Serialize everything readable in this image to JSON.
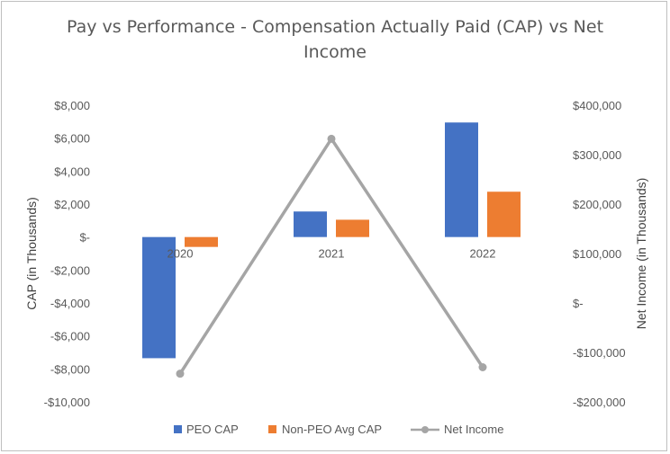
{
  "chart_data": {
    "type": "bar",
    "title_lines": [
      "Pay vs Performance - Compensation Actually Paid (CAP) vs Net",
      "Income"
    ],
    "categories": [
      "2020",
      "2021",
      "2022"
    ],
    "series": [
      {
        "name": "PEO CAP",
        "axis": "left",
        "kind": "bar",
        "color": "#4472C4",
        "values": [
          -7350,
          1550,
          6950
        ]
      },
      {
        "name": "Non-PEO Avg CAP",
        "axis": "left",
        "kind": "bar",
        "color": "#ED7D31",
        "values": [
          -600,
          1050,
          2750
        ]
      },
      {
        "name": "Net Income",
        "axis": "right",
        "kind": "line",
        "color": "#A5A5A5",
        "values": [
          -143000,
          332000,
          -130000
        ]
      }
    ],
    "ylabel": "CAP (in Thousands)",
    "y2label": "Net Income (in Thousands)",
    "ylim": [
      -10000,
      8000
    ],
    "y2lim": [
      -200000,
      400000
    ],
    "yticks": [
      8000,
      6000,
      4000,
      2000,
      0,
      -2000,
      -4000,
      -6000,
      -8000,
      -10000
    ],
    "ytick_labels": [
      "$8,000",
      "$6,000",
      "$4,000",
      "$2,000",
      "$-",
      "-$2,000",
      "-$4,000",
      "-$6,000",
      "-$8,000",
      "-$10,000"
    ],
    "y2ticks": [
      400000,
      300000,
      200000,
      100000,
      0,
      -100000,
      -200000
    ],
    "y2tick_labels": [
      "$400,000",
      "$300,000",
      "$200,000",
      "$100,000",
      "$-",
      "-$100,000",
      "-$200,000"
    ],
    "grid": false,
    "legend": "bottom"
  }
}
